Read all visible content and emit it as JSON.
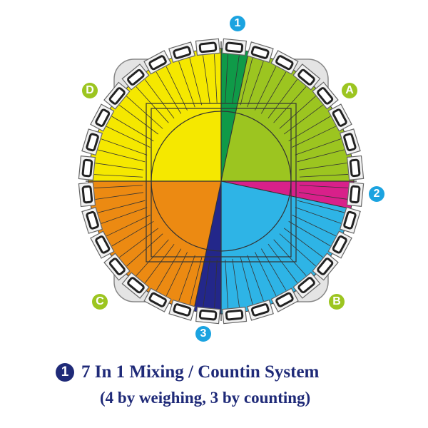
{
  "markers": {
    "m1": {
      "label": "1",
      "color": "#1ba3e0"
    },
    "mA": {
      "label": "A",
      "color": "#9cc520"
    },
    "m2": {
      "label": "2",
      "color": "#1ba3e0"
    },
    "mB": {
      "label": "B",
      "color": "#9cc520"
    },
    "m3": {
      "label": "3",
      "color": "#1ba3e0"
    },
    "mC": {
      "label": "C",
      "color": "#9cc520"
    },
    "mD": {
      "label": "D",
      "color": "#9cc520"
    }
  },
  "sectors": [
    {
      "id": "1",
      "color": "#0f9a48"
    },
    {
      "id": "A",
      "color": "#9cc520"
    },
    {
      "id": "2",
      "color": "#d8208a"
    },
    {
      "id": "B",
      "color": "#2eb4e6"
    },
    {
      "id": "3",
      "color": "#23278a"
    },
    {
      "id": "C",
      "color": "#ec8a12"
    },
    {
      "id": "D",
      "color": "#f5e800"
    }
  ],
  "caption": {
    "number": "1",
    "title": "7 In 1 Mixing / Countin System",
    "subtitle": "(4 by weighing, 3 by counting)"
  }
}
